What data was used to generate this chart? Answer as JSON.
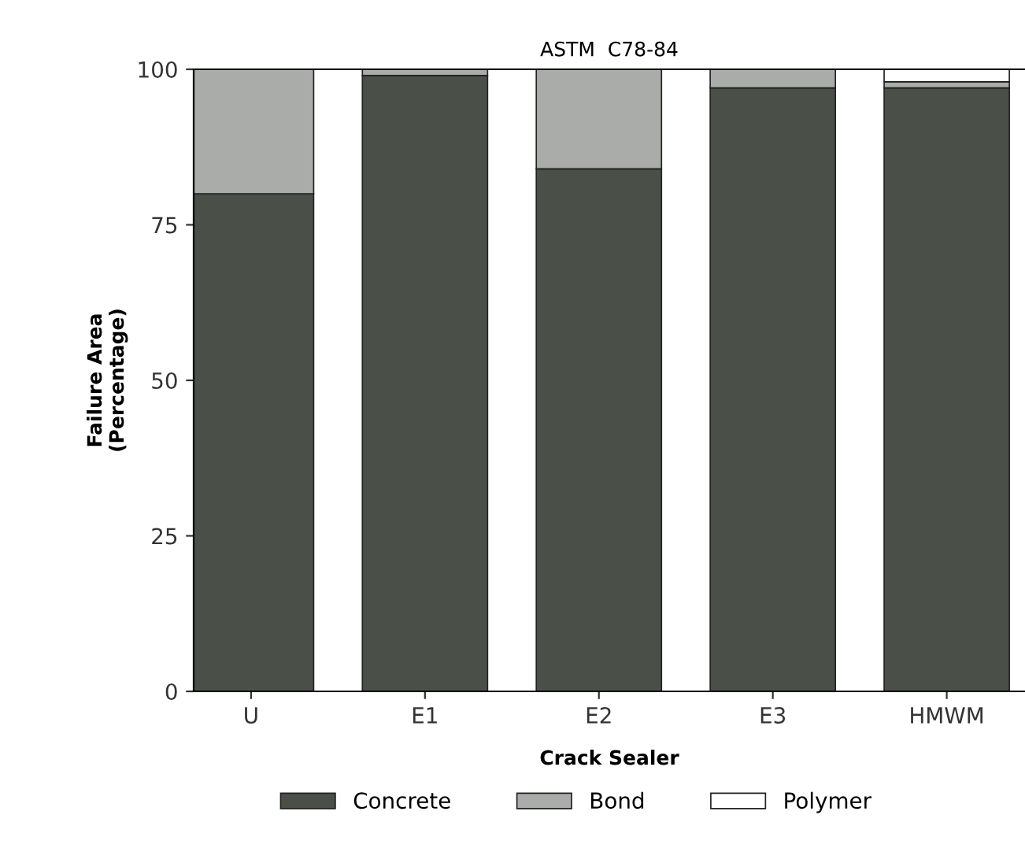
{
  "chart_data": {
    "type": "bar",
    "title": "ASTM  C78-84",
    "xlabel": "Crack Sealer",
    "ylabel": "Failure Area\n(Percentage)",
    "categories": [
      "U",
      "E1",
      "E2",
      "E3",
      "HMWM"
    ],
    "stacked": true,
    "series": [
      {
        "name": "Concrete",
        "color": "#4a5048",
        "values": [
          80,
          99,
          84,
          97,
          97
        ]
      },
      {
        "name": "Bond",
        "color": "#a9aca8",
        "values": [
          20,
          1,
          16,
          3,
          1
        ]
      },
      {
        "name": "Polymer",
        "color": "#ffffff",
        "values": [
          0,
          0,
          0,
          0,
          2
        ]
      }
    ],
    "ylim": [
      0,
      100
    ],
    "yticks": [
      0,
      25,
      50,
      75,
      100
    ],
    "grid": false,
    "legend": "bottom"
  }
}
